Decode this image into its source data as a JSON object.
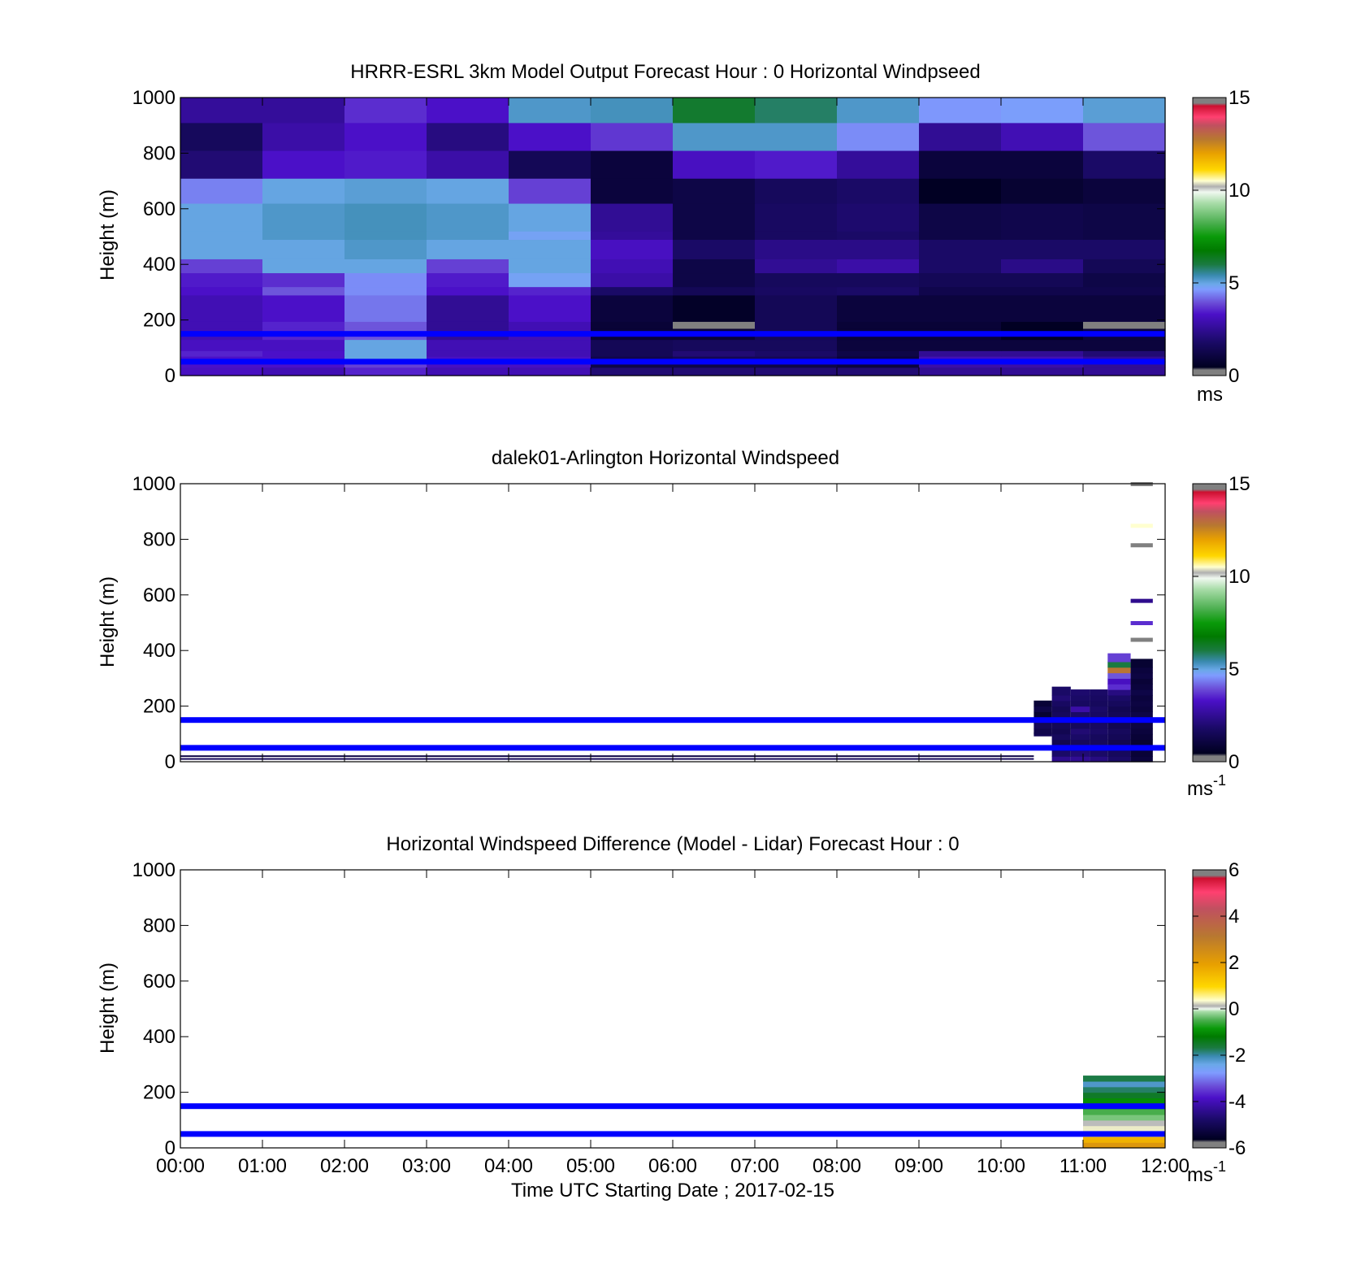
{
  "figure": {
    "xlabel": "Time UTC  Starting Date ; 2017-02-15",
    "time_ticks": [
      "00:00",
      "01:00",
      "02:00",
      "03:00",
      "04:00",
      "05:00",
      "06:00",
      "07:00",
      "08:00",
      "09:00",
      "10:00",
      "11:00",
      "12:00"
    ],
    "height_ticks": [
      "0",
      "200",
      "400",
      "600",
      "800",
      "1000"
    ],
    "ylabel": "Height (m)",
    "marker_heights_m": [
      150,
      50
    ],
    "marker_color": "#0000ff"
  },
  "colormaps": {
    "speed_stops": [
      [
        0.0,
        "#808080"
      ],
      [
        0.02,
        "#808080"
      ],
      [
        0.03,
        "#000020"
      ],
      [
        0.12,
        "#1a0a66"
      ],
      [
        0.22,
        "#4b10c8"
      ],
      [
        0.26,
        "#6a4ad6"
      ],
      [
        0.31,
        "#7f9cff"
      ],
      [
        0.33,
        "#6aa8e8"
      ],
      [
        0.36,
        "#3a8ab0"
      ],
      [
        0.4,
        "#1a7a40"
      ],
      [
        0.45,
        "#007a00"
      ],
      [
        0.5,
        "#0a9a0a"
      ],
      [
        0.55,
        "#4caf50"
      ],
      [
        0.62,
        "#a8dca8"
      ],
      [
        0.66,
        "#f0f8f0"
      ],
      [
        0.68,
        "#b0b0b0"
      ],
      [
        0.7,
        "#ffffd0"
      ],
      [
        0.74,
        "#ffd700"
      ],
      [
        0.8,
        "#e8a000"
      ],
      [
        0.85,
        "#b87830"
      ],
      [
        0.9,
        "#c05060"
      ],
      [
        0.93,
        "#ff4070"
      ],
      [
        0.97,
        "#cc1030"
      ],
      [
        0.98,
        "#808080"
      ],
      [
        1.0,
        "#808080"
      ]
    ],
    "diff_stops": [
      [
        0.0,
        "#808080"
      ],
      [
        0.02,
        "#808080"
      ],
      [
        0.03,
        "#000020"
      ],
      [
        0.1,
        "#1a0a66"
      ],
      [
        0.18,
        "#4b10c8"
      ],
      [
        0.22,
        "#6a4ad6"
      ],
      [
        0.27,
        "#7f9cff"
      ],
      [
        0.3,
        "#6aa8e8"
      ],
      [
        0.33,
        "#3a8ab0"
      ],
      [
        0.36,
        "#1a7a40"
      ],
      [
        0.4,
        "#007a00"
      ],
      [
        0.43,
        "#0a9a0a"
      ],
      [
        0.46,
        "#4caf50"
      ],
      [
        0.49,
        "#a8dca8"
      ],
      [
        0.5,
        "#f0f8f0"
      ],
      [
        0.51,
        "#b0b0b0"
      ],
      [
        0.53,
        "#ffffd0"
      ],
      [
        0.58,
        "#ffd700"
      ],
      [
        0.66,
        "#e8a000"
      ],
      [
        0.76,
        "#b87830"
      ],
      [
        0.86,
        "#c05060"
      ],
      [
        0.92,
        "#ff4070"
      ],
      [
        0.97,
        "#cc1030"
      ],
      [
        0.98,
        "#808080"
      ],
      [
        1.0,
        "#808080"
      ]
    ]
  },
  "chart_data": [
    {
      "type": "heatmap",
      "title": "HRRR-ESRL 3km Model Output   Forecast Hour : 0 Horizontal Windpseed",
      "xlabel": "",
      "ylabel": "Height (m)",
      "xlim": [
        0,
        12
      ],
      "ylim": [
        0,
        1000
      ],
      "colorbar": {
        "range": [
          0,
          15
        ],
        "ticks": [
          "0",
          "5",
          "10",
          "15"
        ],
        "unit": "ms"
      },
      "units": "m/s",
      "hours": [
        0,
        1,
        2,
        3,
        4,
        5,
        6,
        7,
        8,
        9,
        10,
        11
      ],
      "heights_m": [
        15,
        40,
        60,
        80,
        110,
        150,
        180,
        240,
        305,
        350,
        395,
        455,
        505,
        570,
        665,
        780,
        880,
        965
      ],
      "layer_edges_m": [
        0,
        30,
        50,
        70,
        90,
        130,
        170,
        195,
        290,
        320,
        370,
        420,
        490,
        520,
        620,
        710,
        810,
        910,
        1000
      ],
      "speed": [
        [
          3.2,
          3.0,
          3.5,
          3.0,
          3.0,
          2.0,
          2.0,
          2.0,
          2.0,
          2.5,
          2.5,
          2.5
        ],
        [
          3.3,
          3.3,
          3.8,
          3.2,
          3.2,
          1.2,
          1.2,
          1.2,
          1.0,
          2.8,
          2.8,
          2.5
        ],
        [
          3.3,
          3.3,
          5.0,
          3.2,
          3.2,
          1.3,
          1.5,
          1.5,
          1.0,
          3.0,
          3.0,
          2.5
        ],
        [
          3.5,
          3.3,
          5.0,
          3.0,
          3.0,
          1.5,
          2.0,
          1.8,
          1.2,
          2.5,
          2.5,
          2.0
        ],
        [
          3.2,
          3.2,
          5.0,
          3.0,
          3.0,
          1.5,
          1.6,
          1.6,
          1.0,
          1.0,
          1.0,
          1.0
        ],
        [
          3.0,
          3.5,
          4.0,
          2.5,
          3.0,
          0.9,
          0.9,
          1.5,
          0.9,
          0.9,
          0.5,
          1.0
        ],
        [
          3.0,
          3.5,
          4.0,
          2.5,
          3.0,
          0.9,
          0.2,
          1.5,
          0.9,
          0.9,
          0.5,
          0.2
        ],
        [
          3.0,
          3.3,
          4.3,
          2.5,
          3.3,
          1.0,
          0.6,
          1.5,
          1.0,
          1.0,
          1.0,
          1.0
        ],
        [
          3.3,
          4.0,
          4.5,
          3.3,
          3.5,
          1.8,
          1.5,
          1.7,
          1.8,
          1.3,
          1.3,
          1.3
        ],
        [
          3.4,
          3.6,
          4.5,
          3.4,
          4.8,
          2.8,
          1.2,
          1.6,
          1.6,
          1.5,
          1.5,
          1.2
        ],
        [
          3.8,
          5.0,
          5.0,
          3.8,
          5.0,
          3.0,
          1.2,
          2.5,
          2.8,
          1.8,
          2.3,
          1.5
        ],
        [
          5.0,
          5.0,
          5.2,
          5.0,
          5.0,
          3.2,
          1.8,
          2.3,
          2.3,
          1.8,
          1.8,
          1.8
        ],
        [
          5.0,
          5.2,
          5.3,
          5.2,
          4.8,
          2.6,
          1.2,
          1.7,
          1.8,
          1.2,
          1.3,
          1.2
        ],
        [
          5.0,
          5.2,
          5.3,
          5.2,
          5.0,
          2.5,
          1.2,
          1.7,
          1.9,
          1.2,
          1.3,
          1.2
        ],
        [
          4.4,
          5.0,
          5.1,
          5.0,
          3.8,
          1.0,
          1.2,
          1.6,
          1.8,
          0.5,
          0.8,
          1.0
        ],
        [
          2.0,
          3.3,
          3.4,
          2.8,
          1.5,
          1.0,
          3.2,
          3.4,
          2.6,
          1.0,
          1.0,
          1.8
        ],
        [
          1.6,
          2.8,
          3.3,
          2.2,
          3.3,
          3.7,
          5.2,
          5.2,
          4.5,
          2.5,
          3.0,
          4.0
        ],
        [
          2.6,
          2.6,
          3.6,
          3.3,
          5.2,
          5.3,
          6.2,
          5.8,
          5.2,
          4.6,
          4.7,
          5.1
        ]
      ]
    },
    {
      "type": "heatmap",
      "title": "dalek01-Arlington  Horizontal Windspeed",
      "xlabel": "",
      "ylabel": "Height (m)",
      "xlim": [
        0,
        12
      ],
      "ylim": [
        0,
        1000
      ],
      "colorbar": {
        "range": [
          0,
          15
        ],
        "ticks": [
          "0",
          "5",
          "10",
          "15"
        ],
        "unit": "ms",
        "unit_sup": "-1"
      },
      "units": "m/s",
      "columns": [
        {
          "t0": 10.4,
          "t1": 10.62,
          "levels": [
            [
              100,
              1.5
            ],
            [
              120,
              1.3
            ],
            [
              140,
              1.5
            ],
            [
              160,
              1.4
            ],
            [
              180,
              0.8
            ],
            [
              200,
              1.2
            ],
            [
              220,
              0.9
            ]
          ]
        },
        {
          "t0": 10.62,
          "t1": 10.85,
          "levels": [
            [
              20,
              2.4
            ],
            [
              40,
              1.8
            ],
            [
              60,
              1.5
            ],
            [
              80,
              1.4
            ],
            [
              100,
              1.6
            ],
            [
              120,
              1.4
            ],
            [
              140,
              1.5
            ],
            [
              160,
              1.3
            ],
            [
              180,
              1.6
            ],
            [
              200,
              1.5
            ],
            [
              220,
              1.7
            ],
            [
              240,
              2.0
            ],
            [
              270,
              1.8
            ]
          ]
        },
        {
          "t0": 10.85,
          "t1": 11.08,
          "levels": [
            [
              20,
              2.5
            ],
            [
              40,
              2.0
            ],
            [
              60,
              1.8
            ],
            [
              80,
              1.6
            ],
            [
              100,
              1.8
            ],
            [
              120,
              2.0
            ],
            [
              140,
              1.6
            ],
            [
              160,
              1.7
            ],
            [
              180,
              1.8
            ],
            [
              200,
              2.8
            ],
            [
              220,
              1.7
            ],
            [
              240,
              1.8
            ],
            [
              260,
              1.9
            ]
          ]
        },
        {
          "t0": 11.08,
          "t1": 11.3,
          "levels": [
            [
              20,
              2.2
            ],
            [
              40,
              1.8
            ],
            [
              60,
              1.7
            ],
            [
              80,
              1.6
            ],
            [
              100,
              1.6
            ],
            [
              120,
              1.8
            ],
            [
              140,
              1.7
            ],
            [
              160,
              1.5
            ],
            [
              180,
              1.7
            ],
            [
              200,
              1.8
            ],
            [
              220,
              1.6
            ],
            [
              240,
              1.7
            ],
            [
              260,
              1.8
            ]
          ]
        },
        {
          "t0": 11.3,
          "t1": 11.58,
          "levels": [
            [
              20,
              1.8
            ],
            [
              40,
              1.6
            ],
            [
              60,
              1.5
            ],
            [
              80,
              1.4
            ],
            [
              100,
              1.5
            ],
            [
              120,
              1.6
            ],
            [
              140,
              1.4
            ],
            [
              160,
              1.3
            ],
            [
              180,
              1.5
            ],
            [
              200,
              1.4
            ],
            [
              220,
              1.6
            ],
            [
              240,
              1.8
            ],
            [
              260,
              2.2
            ],
            [
              280,
              3.6
            ],
            [
              300,
              3.2
            ],
            [
              320,
              4.0
            ],
            [
              340,
              12.8
            ],
            [
              360,
              6.0
            ],
            [
              390,
              3.8
            ]
          ]
        },
        {
          "t0": 11.58,
          "t1": 11.85,
          "levels": [
            [
              20,
              1.0
            ],
            [
              40,
              0.9
            ],
            [
              60,
              0.8
            ],
            [
              80,
              0.8
            ],
            [
              100,
              0.9
            ],
            [
              120,
              1.0
            ],
            [
              140,
              1.1
            ],
            [
              160,
              1.0
            ],
            [
              180,
              1.2
            ],
            [
              200,
              1.0
            ],
            [
              220,
              1.1
            ],
            [
              240,
              1.0
            ],
            [
              260,
              1.2
            ],
            [
              280,
              1.0
            ],
            [
              300,
              0.9
            ],
            [
              320,
              1.1
            ],
            [
              340,
              1.0
            ],
            [
              370,
              0.8
            ],
            [
              440,
              0.3
            ],
            [
              500,
              3.6
            ],
            [
              580,
              2.4
            ],
            [
              780,
              14.9
            ],
            [
              850,
              10.5
            ],
            [
              1000,
              14.9
            ]
          ]
        }
      ],
      "surface_traces": [
        {
          "t0": 0.0,
          "t1": 10.4,
          "height_m": 10,
          "speed": 1.6
        },
        {
          "t0": 0.0,
          "t1": 10.4,
          "height_m": 20,
          "speed": 1.2
        }
      ]
    },
    {
      "type": "heatmap",
      "title": "Horizontal Windspeed Difference (Model - Lidar) Forecast Hour : 0",
      "xlabel": "Time UTC  Starting Date ; 2017-02-15",
      "ylabel": "Height (m)",
      "xlim": [
        0,
        12
      ],
      "ylim": [
        0,
        1000
      ],
      "colorbar": {
        "range": [
          -6,
          6
        ],
        "ticks": [
          "-6",
          "-4",
          "-2",
          "0",
          "2",
          "4",
          "6"
        ],
        "unit": "ms",
        "unit_sup": "-1"
      },
      "units": "m/s",
      "columns": [
        {
          "t0": 11.0,
          "t1": 12.0,
          "levels": [
            [
              20,
              2.2
            ],
            [
              40,
              1.6
            ],
            [
              60,
              0.8
            ],
            [
              80,
              0.3
            ],
            [
              100,
              0.1
            ],
            [
              120,
              -0.3
            ],
            [
              140,
              -0.5
            ],
            [
              160,
              -0.7
            ],
            [
              180,
              -1.0
            ],
            [
              200,
              -1.5
            ],
            [
              220,
              -1.8
            ],
            [
              240,
              -2.2
            ],
            [
              260,
              -1.7
            ]
          ]
        }
      ]
    }
  ]
}
